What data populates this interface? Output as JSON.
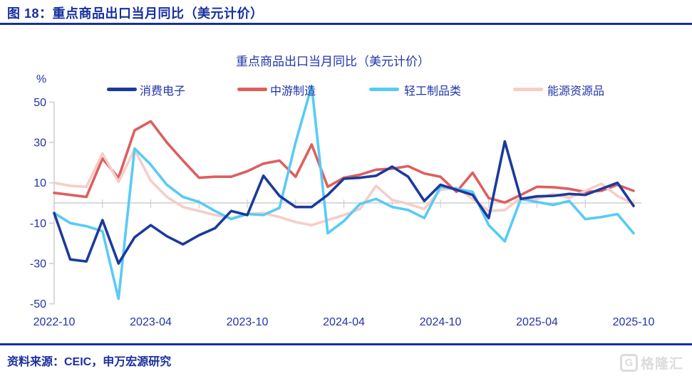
{
  "header": {
    "title": "图 18：重点商品出口当月同比（美元计价）"
  },
  "footer": {
    "source": "资料来源：CEIC，申万宏源研究",
    "watermark_letter": "G",
    "watermark_text": "格隆汇"
  },
  "colors": {
    "accent_blue": "#172FA0",
    "axis_text": "#2234A8",
    "grid": "#CDCDCD",
    "watermark": "#DCDCDC"
  },
  "chart_data": {
    "type": "line",
    "title": "重点商品出口当月同比（美元计价）",
    "ylabel": "%",
    "ylim": [
      -50,
      50
    ],
    "y_ticks": [
      50,
      30,
      10,
      -10,
      -30,
      -50
    ],
    "n_points": 37,
    "x_tick_labels": [
      "2022-10",
      "2023-04",
      "2023-10",
      "2024-04",
      "2024-10",
      "2025-04",
      "2025-10"
    ],
    "x_tick_indices": [
      0,
      6,
      12,
      18,
      24,
      30,
      36
    ],
    "x_minor_tick_every": 3,
    "legend_position": "top",
    "grid": "zero-line-only",
    "series": [
      {
        "name": "消费电子",
        "color": "#1C3A9C",
        "values": [
          -5,
          -28,
          -29,
          -8.5,
          -30,
          -17,
          -11,
          -16.5,
          -20.5,
          -16,
          -12.5,
          -4,
          -6,
          13.5,
          3.5,
          -2,
          -2,
          4,
          12,
          12.5,
          13.5,
          18,
          13,
          1,
          9,
          6.5,
          4,
          -7.5,
          30.5,
          2,
          3.3,
          3.5,
          4.5,
          4,
          7,
          10,
          -1.5
        ]
      },
      {
        "name": "中游制造",
        "color": "#DD5F5F",
        "values": [
          5,
          4,
          3,
          22,
          12.5,
          36,
          40.5,
          30,
          21,
          12.5,
          13,
          13,
          15.7,
          19.5,
          21,
          13,
          29,
          8,
          12.5,
          14,
          16.5,
          17,
          18.2,
          14.6,
          13,
          5.5,
          15,
          2.4,
          0.2,
          4,
          8,
          7.8,
          7,
          5.4,
          6,
          9,
          6
        ]
      },
      {
        "name": "轻工制品类",
        "color": "#58CBF5",
        "values": [
          -5,
          -10,
          -11.5,
          -14,
          -47.5,
          27,
          19,
          9,
          3,
          0.5,
          -4,
          -8,
          -5.5,
          -6,
          -2.4,
          30,
          58,
          -15,
          -9,
          -0.5,
          2,
          -2,
          -3.5,
          -7.5,
          8,
          7,
          5.5,
          -11,
          -19,
          2,
          0.5,
          -1,
          1,
          -8,
          -7,
          -5.5,
          -15
        ]
      },
      {
        "name": "能源资源品",
        "color": "#F6CDC9",
        "values": [
          10,
          8.5,
          8,
          24.5,
          10.5,
          26.5,
          11,
          3,
          -2,
          -4,
          -6,
          -7.5,
          -5.5,
          -5,
          -7,
          -9.5,
          -11,
          -8.5,
          -6,
          -3,
          8.5,
          1.5,
          -0.5,
          -3,
          6.5,
          7.5,
          2,
          -4,
          -3.5,
          2.5,
          2,
          4.5,
          2.5,
          6,
          9.5,
          3.5,
          -0.5
        ]
      }
    ]
  }
}
